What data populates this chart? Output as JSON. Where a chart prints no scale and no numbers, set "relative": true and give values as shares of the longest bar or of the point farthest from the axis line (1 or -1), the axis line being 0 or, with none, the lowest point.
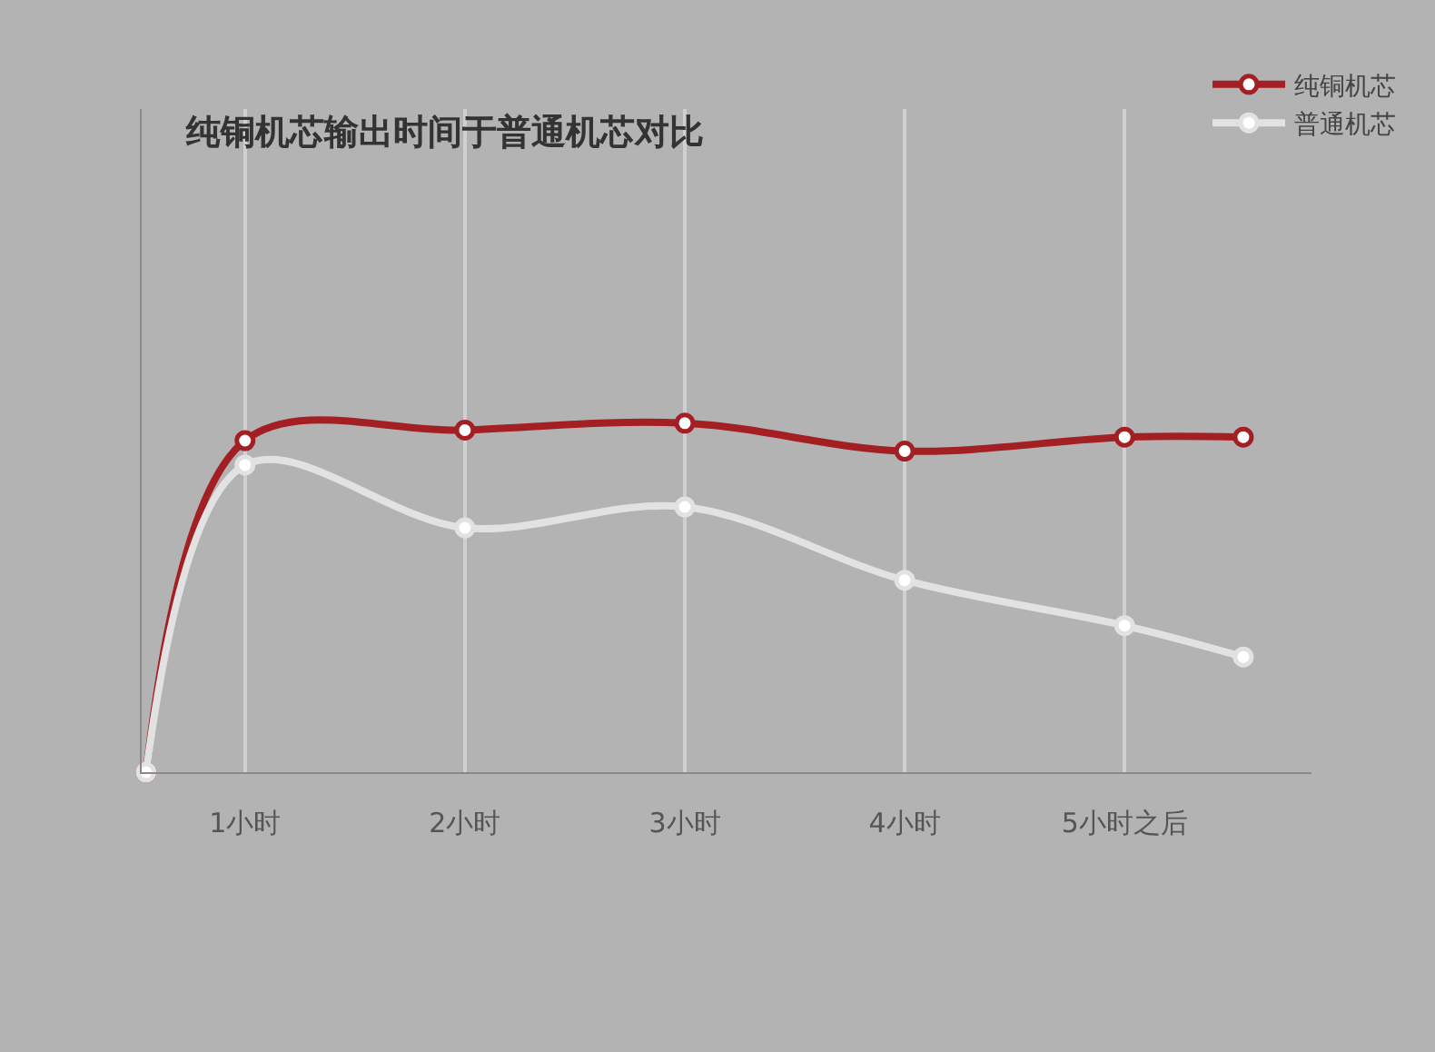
{
  "chart_data": {
    "type": "line",
    "title": "纯铜机芯输出时间于普通机芯对比",
    "relative": true,
    "x": [
      0.55,
      1,
      2,
      3,
      4,
      5,
      5.54
    ],
    "xlim": [
      0.53,
      5.85
    ],
    "xticks": [
      {
        "value": 1,
        "label": "1小时"
      },
      {
        "value": 2,
        "label": "2小时"
      },
      {
        "value": 3,
        "label": "3小时"
      },
      {
        "value": 4,
        "label": "4小时"
      },
      {
        "value": 5,
        "label": "5小时之后"
      }
    ],
    "series": [
      {
        "name": "纯铜机芯",
        "color": "#a31f24",
        "values": [
          0,
          0.95,
          0.98,
          1,
          0.92,
          0.96,
          0.96
        ]
      },
      {
        "name": "普通机芯",
        "color": "#e2e2e2",
        "values": [
          0,
          0.88,
          0.7,
          0.76,
          0.55,
          0.42,
          0.33
        ]
      }
    ],
    "grid": "x",
    "legend": "top right",
    "marker": "circle",
    "line_style": "solid"
  }
}
